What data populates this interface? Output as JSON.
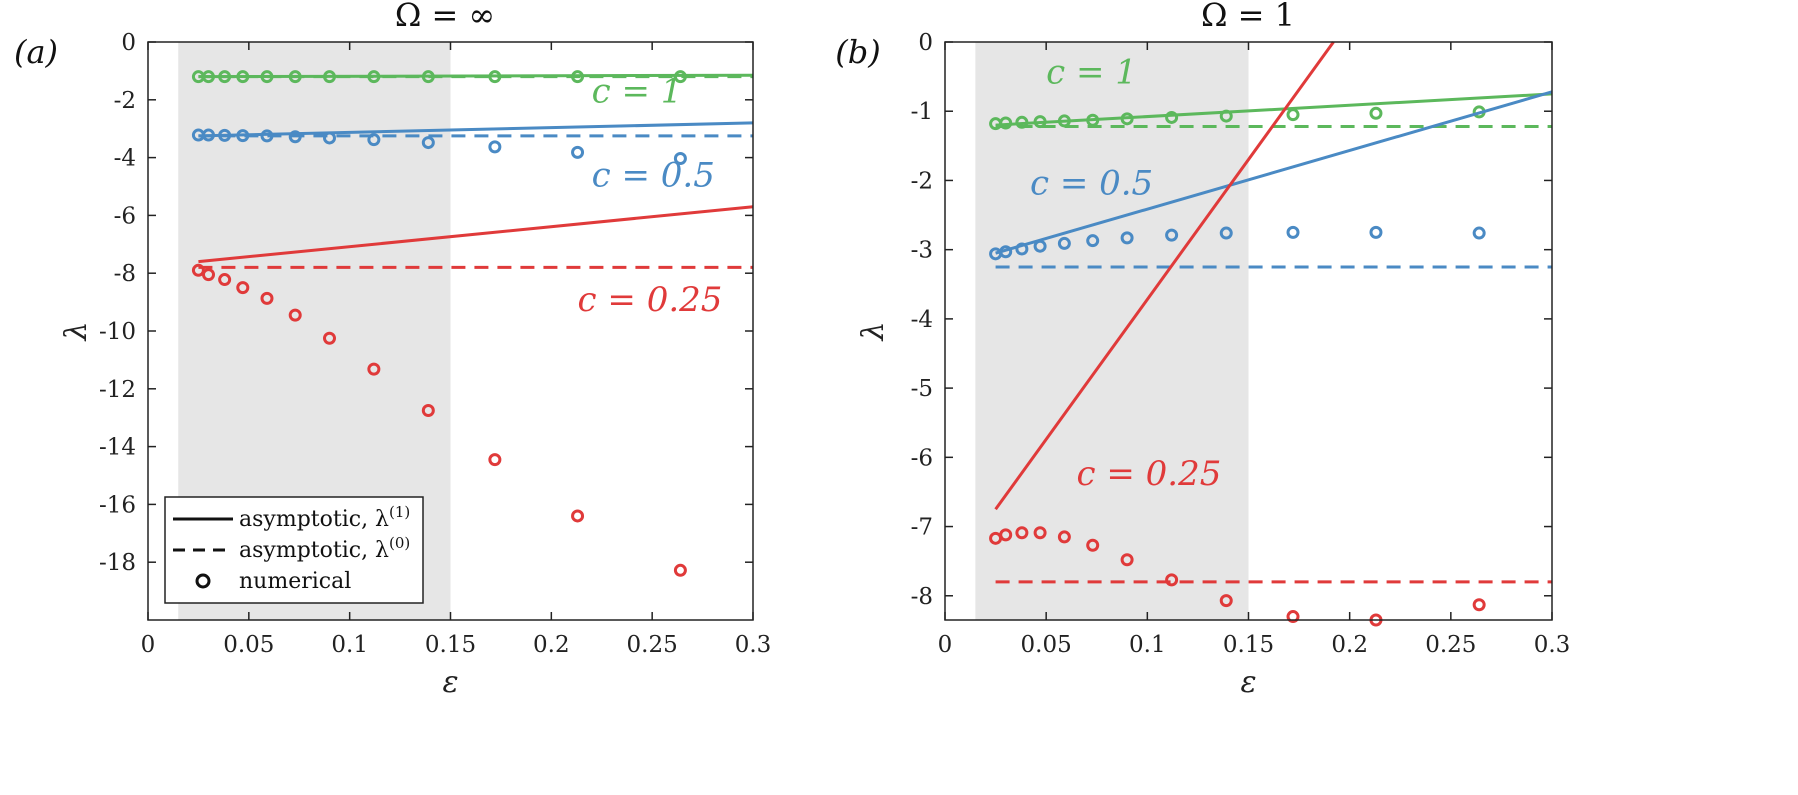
{
  "colors": {
    "red": "#e03a3a",
    "blue": "#4a8ac4",
    "green": "#5cb85c",
    "shade": "#e6e6e6",
    "axis": "#222222"
  },
  "chart_data": [
    {
      "type": "scatter",
      "panel_label": "(a)",
      "title": "Ω = ∞",
      "xlabel": "ε",
      "ylabel": "λ",
      "xlim": [
        0,
        0.3
      ],
      "ylim": [
        -20,
        0
      ],
      "xticks": [
        0,
        0.05,
        0.1,
        0.15,
        0.2,
        0.25,
        0.3
      ],
      "xtick_labels": [
        "0",
        "0.05",
        "0.1",
        "0.15",
        "0.2",
        "0.25",
        "0.3"
      ],
      "yticks": [
        0,
        -2,
        -4,
        -6,
        -8,
        -10,
        -12,
        -14,
        -16,
        -18
      ],
      "ytick_labels": [
        "0",
        "-2",
        "-4",
        "-6",
        "-8",
        "-10",
        "-12",
        "-14",
        "-16",
        "-18"
      ],
      "shaded_region": [
        0.015,
        0.15
      ],
      "grid": false,
      "legend": {
        "placement": "bottom-left",
        "entries": [
          {
            "style": "solid",
            "label": "asymptotic, λ",
            "sup": "(1)"
          },
          {
            "style": "dashed",
            "label": "asymptotic, λ",
            "sup": "(0)"
          },
          {
            "style": "circle",
            "label": "numerical",
            "sup": ""
          }
        ]
      },
      "series": [
        {
          "name": "c = 1",
          "color": "green",
          "label_at": [
            0.22,
            -2.1
          ],
          "line1": [
            [
              0.025,
              -1.2
            ],
            [
              0.3,
              -1.15
            ]
          ],
          "line0": [
            [
              0.025,
              -1.2
            ],
            [
              0.3,
              -1.2
            ]
          ],
          "points": [
            [
              0.025,
              -1.2
            ],
            [
              0.03,
              -1.2
            ],
            [
              0.038,
              -1.2
            ],
            [
              0.047,
              -1.2
            ],
            [
              0.059,
              -1.2
            ],
            [
              0.073,
              -1.2
            ],
            [
              0.09,
              -1.2
            ],
            [
              0.112,
              -1.2
            ],
            [
              0.139,
              -1.2
            ],
            [
              0.172,
              -1.2
            ],
            [
              0.213,
              -1.2
            ],
            [
              0.264,
              -1.2
            ]
          ]
        },
        {
          "name": "c = 0.5",
          "color": "blue",
          "label_at": [
            0.22,
            -5.0
          ],
          "line1": [
            [
              0.025,
              -3.25
            ],
            [
              0.3,
              -2.8
            ]
          ],
          "line0": [
            [
              0.025,
              -3.25
            ],
            [
              0.3,
              -3.25
            ]
          ],
          "points": [
            [
              0.025,
              -3.22
            ],
            [
              0.03,
              -3.22
            ],
            [
              0.038,
              -3.23
            ],
            [
              0.047,
              -3.24
            ],
            [
              0.059,
              -3.25
            ],
            [
              0.073,
              -3.28
            ],
            [
              0.09,
              -3.32
            ],
            [
              0.112,
              -3.38
            ],
            [
              0.139,
              -3.48
            ],
            [
              0.172,
              -3.63
            ],
            [
              0.213,
              -3.82
            ],
            [
              0.264,
              -4.03
            ]
          ]
        },
        {
          "name": "c = 0.25",
          "color": "red",
          "label_at": [
            0.213,
            -9.3
          ],
          "line1": [
            [
              0.025,
              -7.6
            ],
            [
              0.3,
              -5.7
            ]
          ],
          "line0": [
            [
              0.025,
              -7.8
            ],
            [
              0.3,
              -7.8
            ]
          ],
          "points": [
            [
              0.025,
              -7.9
            ],
            [
              0.03,
              -8.05
            ],
            [
              0.038,
              -8.22
            ],
            [
              0.047,
              -8.5
            ],
            [
              0.059,
              -8.87
            ],
            [
              0.073,
              -9.45
            ],
            [
              0.09,
              -10.25
            ],
            [
              0.112,
              -11.32
            ],
            [
              0.139,
              -12.75
            ],
            [
              0.172,
              -14.45
            ],
            [
              0.213,
              -16.4
            ],
            [
              0.264,
              -18.28
            ]
          ]
        }
      ]
    },
    {
      "type": "scatter",
      "panel_label": "(b)",
      "title": "Ω = 1",
      "xlabel": "ε",
      "ylabel": "λ",
      "xlim": [
        0,
        0.3
      ],
      "ylim": [
        -8.35,
        0
      ],
      "xticks": [
        0,
        0.05,
        0.1,
        0.15,
        0.2,
        0.25,
        0.3
      ],
      "xtick_labels": [
        "0",
        "0.05",
        "0.1",
        "0.15",
        "0.2",
        "0.25",
        "0.3"
      ],
      "yticks": [
        0,
        -1,
        -2,
        -3,
        -4,
        -5,
        -6,
        -7,
        -8
      ],
      "ytick_labels": [
        "0",
        "-1",
        "-2",
        "-3",
        "-4",
        "-5",
        "-6",
        "-7",
        "-8"
      ],
      "shaded_region": [
        0.015,
        0.15
      ],
      "grid": false,
      "series": [
        {
          "name": "c = 1",
          "color": "green",
          "label_at": [
            0.05,
            -0.6
          ],
          "line1": [
            [
              0.025,
              -1.2
            ],
            [
              0.3,
              -0.75
            ]
          ],
          "line0": [
            [
              0.025,
              -1.22
            ],
            [
              0.3,
              -1.22
            ]
          ],
          "points": [
            [
              0.025,
              -1.18
            ],
            [
              0.03,
              -1.17
            ],
            [
              0.038,
              -1.16
            ],
            [
              0.047,
              -1.15
            ],
            [
              0.059,
              -1.14
            ],
            [
              0.073,
              -1.13
            ],
            [
              0.09,
              -1.11
            ],
            [
              0.112,
              -1.09
            ],
            [
              0.139,
              -1.07
            ],
            [
              0.172,
              -1.05
            ],
            [
              0.213,
              -1.03
            ],
            [
              0.264,
              -1.01
            ]
          ]
        },
        {
          "name": "c = 0.5",
          "color": "blue",
          "label_at": [
            0.042,
            -2.2
          ],
          "line1": [
            [
              0.025,
              -3.05
            ],
            [
              0.3,
              -0.72
            ]
          ],
          "line0": [
            [
              0.025,
              -3.25
            ],
            [
              0.3,
              -3.25
            ]
          ],
          "points": [
            [
              0.025,
              -3.06
            ],
            [
              0.03,
              -3.03
            ],
            [
              0.038,
              -2.99
            ],
            [
              0.047,
              -2.95
            ],
            [
              0.059,
              -2.91
            ],
            [
              0.073,
              -2.87
            ],
            [
              0.09,
              -2.83
            ],
            [
              0.112,
              -2.79
            ],
            [
              0.139,
              -2.76
            ],
            [
              0.172,
              -2.75
            ],
            [
              0.213,
              -2.75
            ],
            [
              0.264,
              -2.76
            ]
          ]
        },
        {
          "name": "c = 0.25",
          "color": "red",
          "label_at": [
            0.065,
            -6.4
          ],
          "line1": [
            [
              0.025,
              -6.75
            ],
            [
              0.192,
              0
            ]
          ],
          "line0": [
            [
              0.025,
              -7.8
            ],
            [
              0.3,
              -7.8
            ]
          ],
          "points": [
            [
              0.025,
              -7.17
            ],
            [
              0.03,
              -7.12
            ],
            [
              0.038,
              -7.09
            ],
            [
              0.047,
              -7.09
            ],
            [
              0.059,
              -7.15
            ],
            [
              0.073,
              -7.27
            ],
            [
              0.09,
              -7.48
            ],
            [
              0.112,
              -7.77
            ],
            [
              0.139,
              -8.07
            ],
            [
              0.172,
              -8.3
            ],
            [
              0.213,
              -8.35
            ],
            [
              0.264,
              -8.13
            ]
          ]
        }
      ]
    }
  ]
}
